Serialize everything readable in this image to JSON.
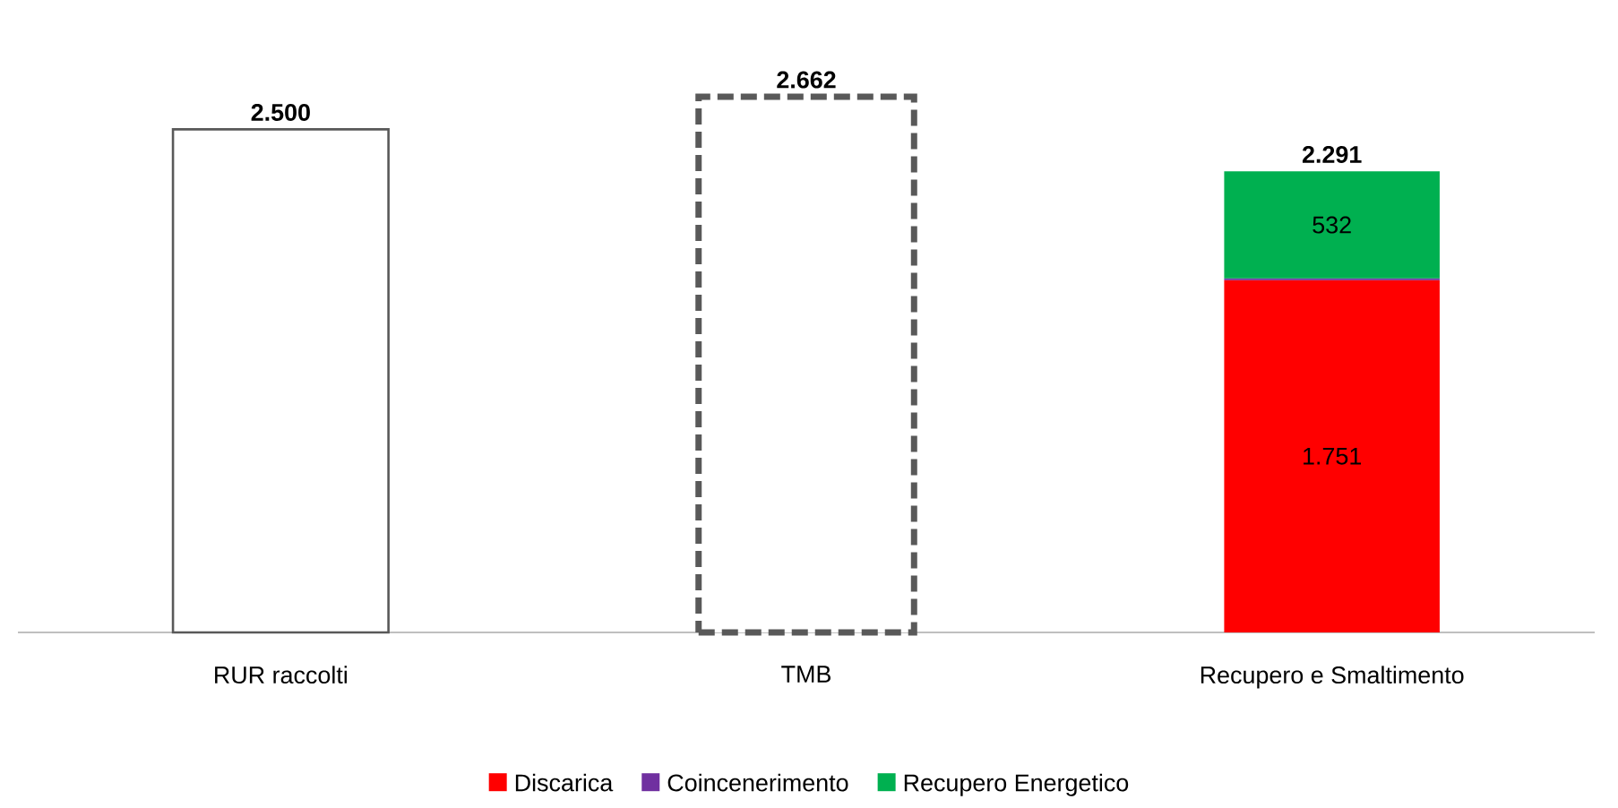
{
  "chart_data": {
    "type": "bar",
    "stacked": true,
    "legend": "bottom",
    "categories": [
      "RUR raccolti",
      "TMB",
      "Recupero e Smaltimento"
    ],
    "series": [
      {
        "color": "#595959",
        "line_style": "solid",
        "values": [
          2500,
          null,
          null
        ]
      },
      {
        "color": "#595959",
        "line_style": "dashed",
        "values": [
          null,
          2662,
          null
        ]
      },
      {
        "name": "Discarica",
        "color": "#ff0000",
        "values": [
          null,
          null,
          1751
        ],
        "value_labels": [
          null,
          null,
          "1.751"
        ]
      },
      {
        "name": "Coincenerimento",
        "color": "#7030a0",
        "values": [
          null,
          null,
          8
        ]
      },
      {
        "name": "Recupero Energetico",
        "color": "#00b050",
        "values": [
          null,
          null,
          532
        ],
        "value_labels": [
          null,
          null,
          "532"
        ]
      }
    ],
    "totals": [
      "2.500",
      "2.662",
      "2.291"
    ]
  }
}
